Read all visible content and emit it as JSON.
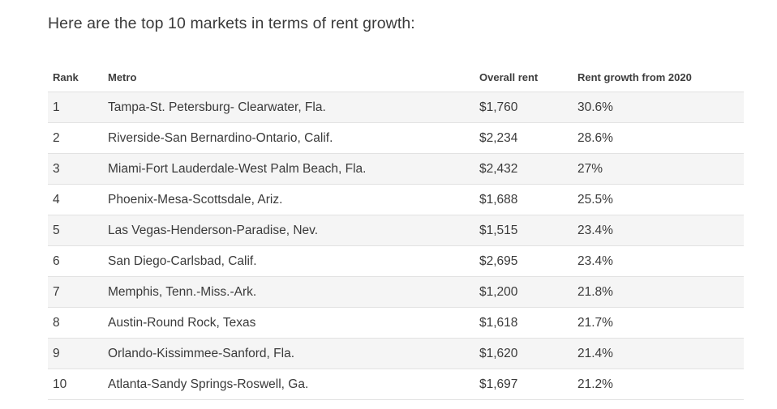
{
  "intro_text": "Here are the top 10 markets in terms of rent growth:",
  "table": {
    "headers": {
      "rank": "Rank",
      "metro": "Metro",
      "rent": "Overall rent",
      "growth": "Rent growth from 2020"
    },
    "rows": [
      {
        "rank": "1",
        "metro": "Tampa-St. Petersburg- Clearwater, Fla.",
        "rent": "$1,760",
        "growth": "30.6%"
      },
      {
        "rank": "2",
        "metro": "Riverside-San Bernardino-Ontario, Calif.",
        "rent": "$2,234",
        "growth": "28.6%"
      },
      {
        "rank": "3",
        "metro": "Miami-Fort Lauderdale-West Palm Beach, Fla.",
        "rent": "$2,432",
        "growth": "27%"
      },
      {
        "rank": "4",
        "metro": "Phoenix-Mesa-Scottsdale, Ariz.",
        "rent": "$1,688",
        "growth": "25.5%"
      },
      {
        "rank": "5",
        "metro": "Las Vegas-Henderson-Paradise, Nev.",
        "rent": "$1,515",
        "growth": "23.4%"
      },
      {
        "rank": "6",
        "metro": "San Diego-Carlsbad, Calif.",
        "rent": "$2,695",
        "growth": "23.4%"
      },
      {
        "rank": "7",
        "metro": "Memphis, Tenn.-Miss.-Ark.",
        "rent": "$1,200",
        "growth": "21.8%"
      },
      {
        "rank": "8",
        "metro": "Austin-Round Rock, Texas",
        "rent": "$1,618",
        "growth": "21.7%"
      },
      {
        "rank": "9",
        "metro": "Orlando-Kissimmee-Sanford, Fla.",
        "rent": "$1,620",
        "growth": "21.4%"
      },
      {
        "rank": "10",
        "metro": "Atlanta-Sandy Springs-Roswell, Ga.",
        "rent": "$1,697",
        "growth": "21.2%"
      }
    ]
  }
}
